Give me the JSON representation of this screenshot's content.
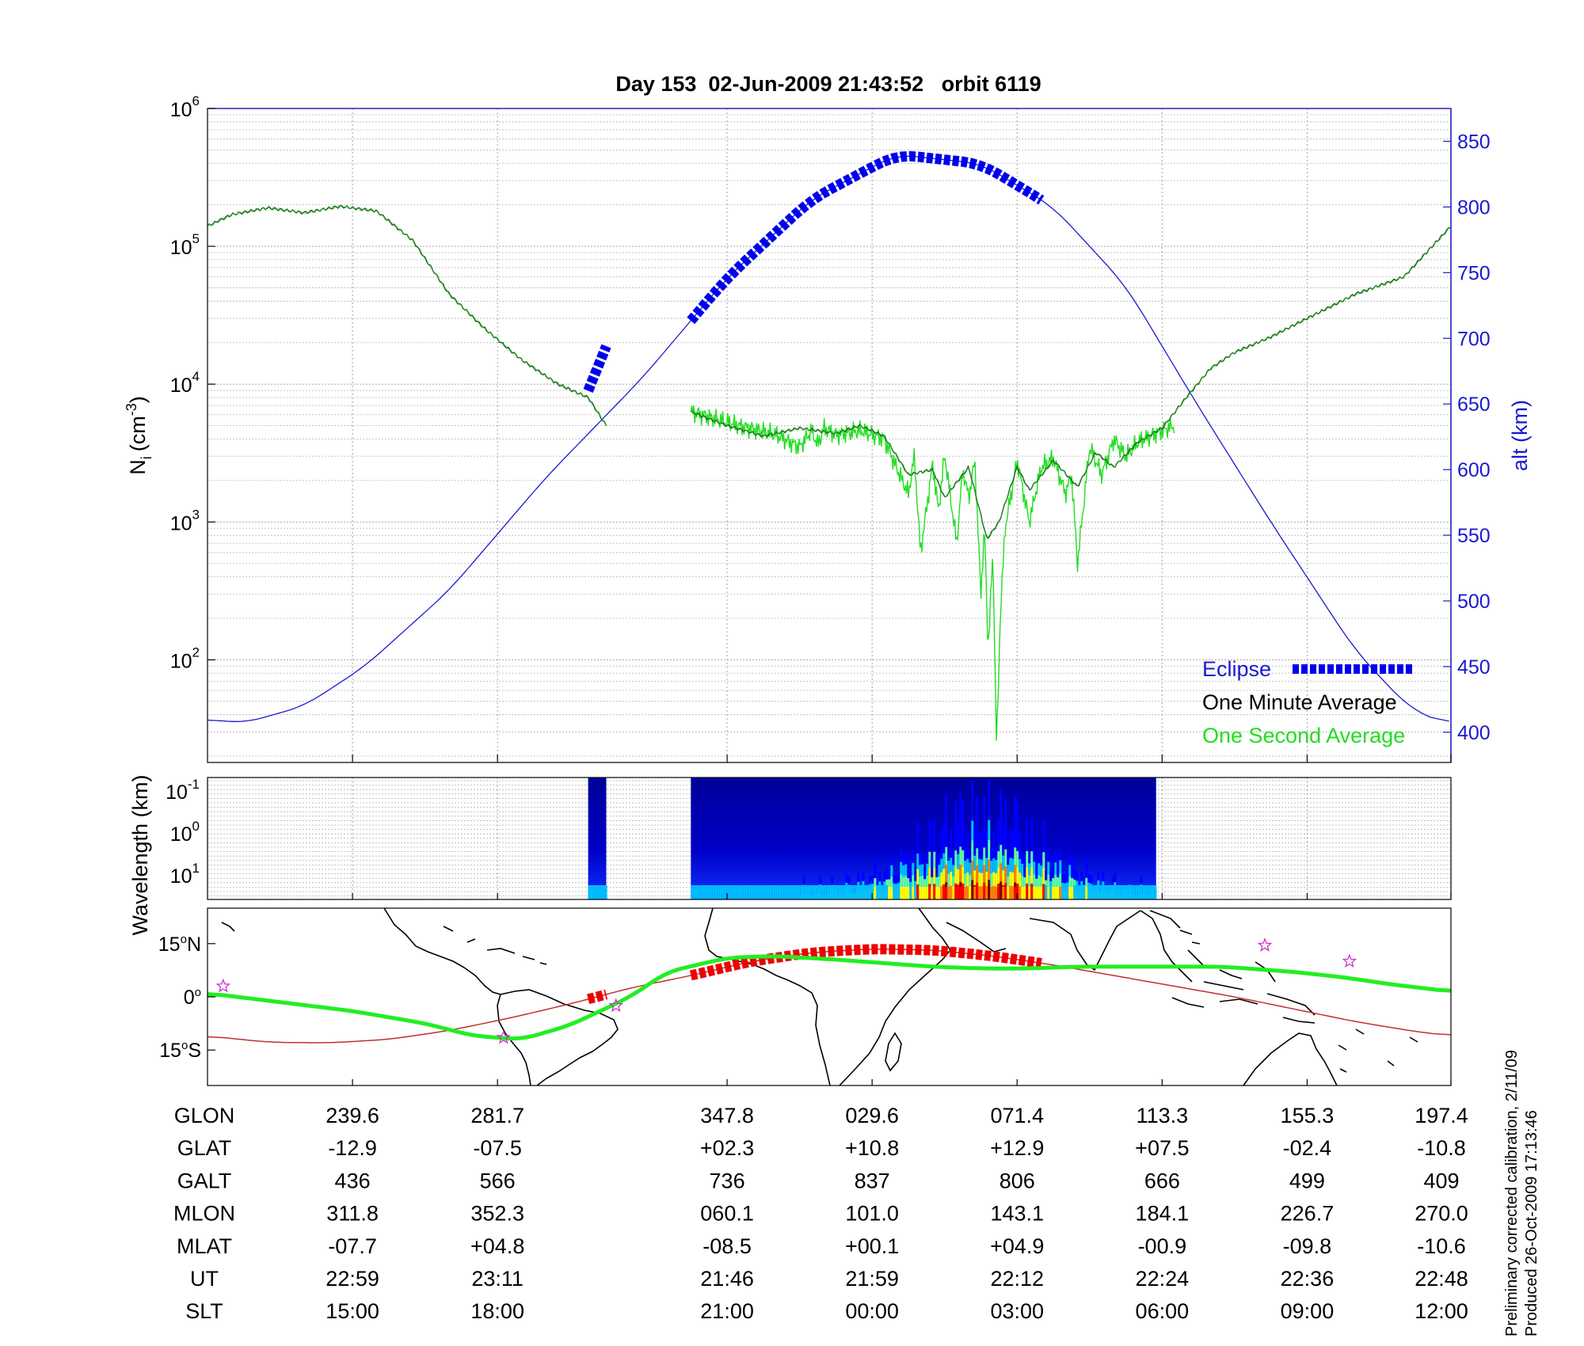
{
  "figure": {
    "title": "Day 153  02-Jun-2009 21:43:52   orbit 6119",
    "side_note": [
      "Preliminary corrected calibration, 2/11/09",
      "Produced 26-Oct-2009 17:13:46"
    ]
  },
  "chart_data": [
    {
      "panel": "density",
      "type": "line",
      "ylabel_left": "N",
      "ylabel_left_sub": "i",
      "ylabel_left_unit": "(cm",
      "ylabel_left_unit_sup": "-3",
      "ylabel_left_unit_close": ")",
      "ylabel_right": "alt (km)",
      "y_scale_left": "log",
      "yticks_left": [
        {
          "base": "10",
          "exp": "2",
          "value": 100
        },
        {
          "base": "10",
          "exp": "3",
          "value": 1000
        },
        {
          "base": "10",
          "exp": "4",
          "value": 10000
        },
        {
          "base": "10",
          "exp": "5",
          "value": 100000
        },
        {
          "base": "10",
          "exp": "6",
          "value": 1000000
        }
      ],
      "ylim_left": [
        18,
        1000000
      ],
      "yticks_right": [
        "400",
        "450",
        "500",
        "550",
        "600",
        "650",
        "700",
        "750",
        "800",
        "850"
      ],
      "ylim_right": [
        377,
        875
      ],
      "x_unit": "minutes after orbit start",
      "xlim": [
        0,
        102.9
      ],
      "grid": true,
      "legend_position": "bottom-right",
      "legend": [
        {
          "label": "Eclipse",
          "color": "#0000ee"
        },
        {
          "label": "One Minute Average",
          "color": "#000000"
        },
        {
          "label": "One Second Average",
          "color": "#22dd22"
        }
      ],
      "altitude_series": {
        "name": "alt (km)",
        "color": "#1a1ad0",
        "x": [
          0,
          3,
          8,
          13,
          20,
          28,
          36,
          43,
          50,
          57,
          64,
          70,
          76,
          82,
          88,
          95,
          99.5,
          102.9
        ],
        "y": [
          410,
          407,
          420,
          450,
          508,
          594,
          670,
          746,
          806,
          840,
          833,
          800,
          740,
          648,
          560,
          462,
          418,
          405
        ]
      },
      "eclipse_segments": [
        {
          "x": [
            31.5,
            33.0
          ],
          "alt": [
            660,
            694
          ]
        },
        {
          "x": [
            40.0,
            69.0
          ],
          "alt": [
            703,
            800
          ]
        }
      ],
      "minute_average": [
        {
          "x": [
            0,
            2,
            5,
            8,
            11,
            14,
            17,
            20,
            23,
            26,
            29,
            31.5,
            33
          ],
          "y": [
            140000,
            170000,
            190000,
            175000,
            195000,
            180000,
            110000,
            45000,
            25000,
            15000,
            10000,
            8000,
            5000
          ]
        },
        {
          "x": [
            40,
            43,
            46,
            49,
            52,
            54,
            56,
            58,
            60,
            61,
            63,
            64.5,
            65.5,
            67,
            68,
            70,
            72,
            73.5,
            75,
            77,
            79,
            81,
            83,
            85,
            88,
            91,
            95,
            99,
            102.9
          ],
          "y": [
            6300,
            5000,
            4200,
            4800,
            4400,
            5000,
            4200,
            2200,
            2400,
            1500,
            2500,
            750,
            1000,
            2500,
            1700,
            2800,
            1800,
            3200,
            2500,
            3800,
            4800,
            8000,
            13000,
            17000,
            22000,
            30000,
            45000,
            60000,
            140000
          ]
        }
      ],
      "second_average": [
        {
          "x": [
            40,
            44,
            47,
            49,
            50,
            50.5,
            51,
            52,
            54,
            56,
            57,
            58,
            58.5,
            59,
            60,
            60.5,
            61,
            62,
            62.5,
            63,
            63.5,
            64,
            64.3,
            64.6,
            65,
            65.3,
            65.6,
            66,
            67,
            68,
            69,
            70,
            71,
            71.5,
            72,
            73,
            74,
            75,
            76,
            77,
            78,
            79,
            80
          ],
          "y": [
            6300,
            5000,
            4300,
            3500,
            4600,
            3600,
            4800,
            4300,
            4600,
            4000,
            2500,
            1600,
            3000,
            600,
            2600,
            1200,
            3100,
            700,
            2400,
            1500,
            2800,
            300,
            900,
            120,
            600,
            22,
            200,
            900,
            2800,
            1000,
            2500,
            2900,
            1600,
            2200,
            500,
            3500,
            2200,
            4000,
            3000,
            3800,
            4200,
            4600,
            5000
          ]
        }
      ]
    },
    {
      "panel": "spectrogram",
      "type": "heatmap",
      "ylabel": "Wavelength (km)",
      "yticks": [
        {
          "base": "10",
          "exp": "-1"
        },
        {
          "base": "10",
          "exp": "0"
        },
        {
          "base": "10",
          "exp": "1"
        }
      ],
      "segments": [
        {
          "x": [
            31.5,
            33.0
          ]
        },
        {
          "x": [
            40.0,
            78.5
          ]
        }
      ],
      "colormap": [
        "#00008f",
        "#0000ff",
        "#00bfff",
        "#5fff9f",
        "#ffff00",
        "#ff8000",
        "#ff0000",
        "#800000"
      ]
    },
    {
      "panel": "map",
      "type": "line",
      "yticks": [
        {
          "deg": "15",
          "hemi": "N",
          "lat": 15
        },
        {
          "deg": "0",
          "hemi": "",
          "lat": 0
        },
        {
          "deg": "15",
          "hemi": "S",
          "lat": -15
        }
      ],
      "ylim": [
        -25,
        25
      ],
      "series_track_geo": {
        "color": "#c03030",
        "x": [
          0,
          5,
          10,
          15,
          20,
          25,
          30,
          35,
          40,
          45,
          50,
          55,
          60,
          65,
          70,
          75,
          80,
          85,
          90,
          95,
          100,
          102.9
        ],
        "lat": [
          -11,
          -12.8,
          -13,
          -12,
          -9.5,
          -6,
          -2,
          2.5,
          6,
          10,
          12.5,
          13.5,
          13.2,
          11.5,
          9,
          6,
          3,
          0,
          -3.5,
          -7,
          -9.8,
          -11
        ]
      },
      "series_track_mag": {
        "color": "#22ee22",
        "x": [
          0,
          6,
          12,
          18,
          22,
          26,
          30,
          35,
          38,
          43,
          47,
          52,
          56,
          60,
          64,
          68,
          72,
          76,
          80,
          84,
          86,
          90,
          94,
          98,
          102.9
        ],
        "lat": [
          1,
          -1.5,
          -4,
          -7.5,
          -11,
          -12,
          -8,
          0,
          7,
          11,
          11.5,
          10.5,
          9.5,
          8.5,
          8,
          8,
          8.5,
          8.5,
          8.5,
          8.5,
          8,
          7,
          5.5,
          3.5,
          1.5
        ]
      },
      "eclipse_segments_geo": [
        {
          "x": [
            31.5,
            33.0
          ]
        },
        {
          "x": [
            40.0,
            69.0
          ]
        }
      ],
      "star_markers": [
        {
          "x": 1.3,
          "lat": 3
        },
        {
          "x": 24.5,
          "lat": -11.5
        },
        {
          "x": 33.8,
          "lat": -2.5
        },
        {
          "x": 87.5,
          "lat": 14.5
        },
        {
          "x": 94.5,
          "lat": 10
        }
      ]
    }
  ],
  "ephemeris": {
    "row_labels": [
      "GLON",
      "GLAT",
      "GALT",
      "MLON",
      "MLAT",
      "UT",
      "SLT"
    ],
    "columns": [
      {
        "x": 12.0,
        "values": [
          "239.6",
          "-12.9",
          "436",
          "311.8",
          "-07.7",
          "22:59",
          "15:00"
        ]
      },
      {
        "x": 24.0,
        "values": [
          "281.7",
          "-07.5",
          "566",
          "352.3",
          "+04.8",
          "23:11",
          "18:00"
        ]
      },
      {
        "x": 43.0,
        "values": [
          "347.8",
          "+02.3",
          "736",
          "060.1",
          "-08.5",
          "21:46",
          "21:00"
        ]
      },
      {
        "x": 55.0,
        "values": [
          "029.6",
          "+10.8",
          "837",
          "101.0",
          "+00.1",
          "21:59",
          "00:00"
        ]
      },
      {
        "x": 67.0,
        "values": [
          "071.4",
          "+12.9",
          "806",
          "143.1",
          "+04.9",
          "22:12",
          "03:00"
        ]
      },
      {
        "x": 79.0,
        "values": [
          "113.3",
          "+07.5",
          "666",
          "184.1",
          "-00.9",
          "22:24",
          "06:00"
        ]
      },
      {
        "x": 91.0,
        "values": [
          "155.3",
          "-02.4",
          "499",
          "226.7",
          "-09.8",
          "22:36",
          "09:00"
        ]
      },
      {
        "x": 102.9,
        "values": [
          "197.4",
          "-10.8",
          "409",
          "270.0",
          "-10.6",
          "22:48",
          "12:00"
        ]
      }
    ]
  },
  "colors": {
    "altitude": "#1a1ad0",
    "eclipse": "#0000ee",
    "minute": "#1e5e1e",
    "second": "#22dd22",
    "geo_track": "#c03030",
    "mag_track": "#22ee22",
    "star": "#cc33cc"
  }
}
